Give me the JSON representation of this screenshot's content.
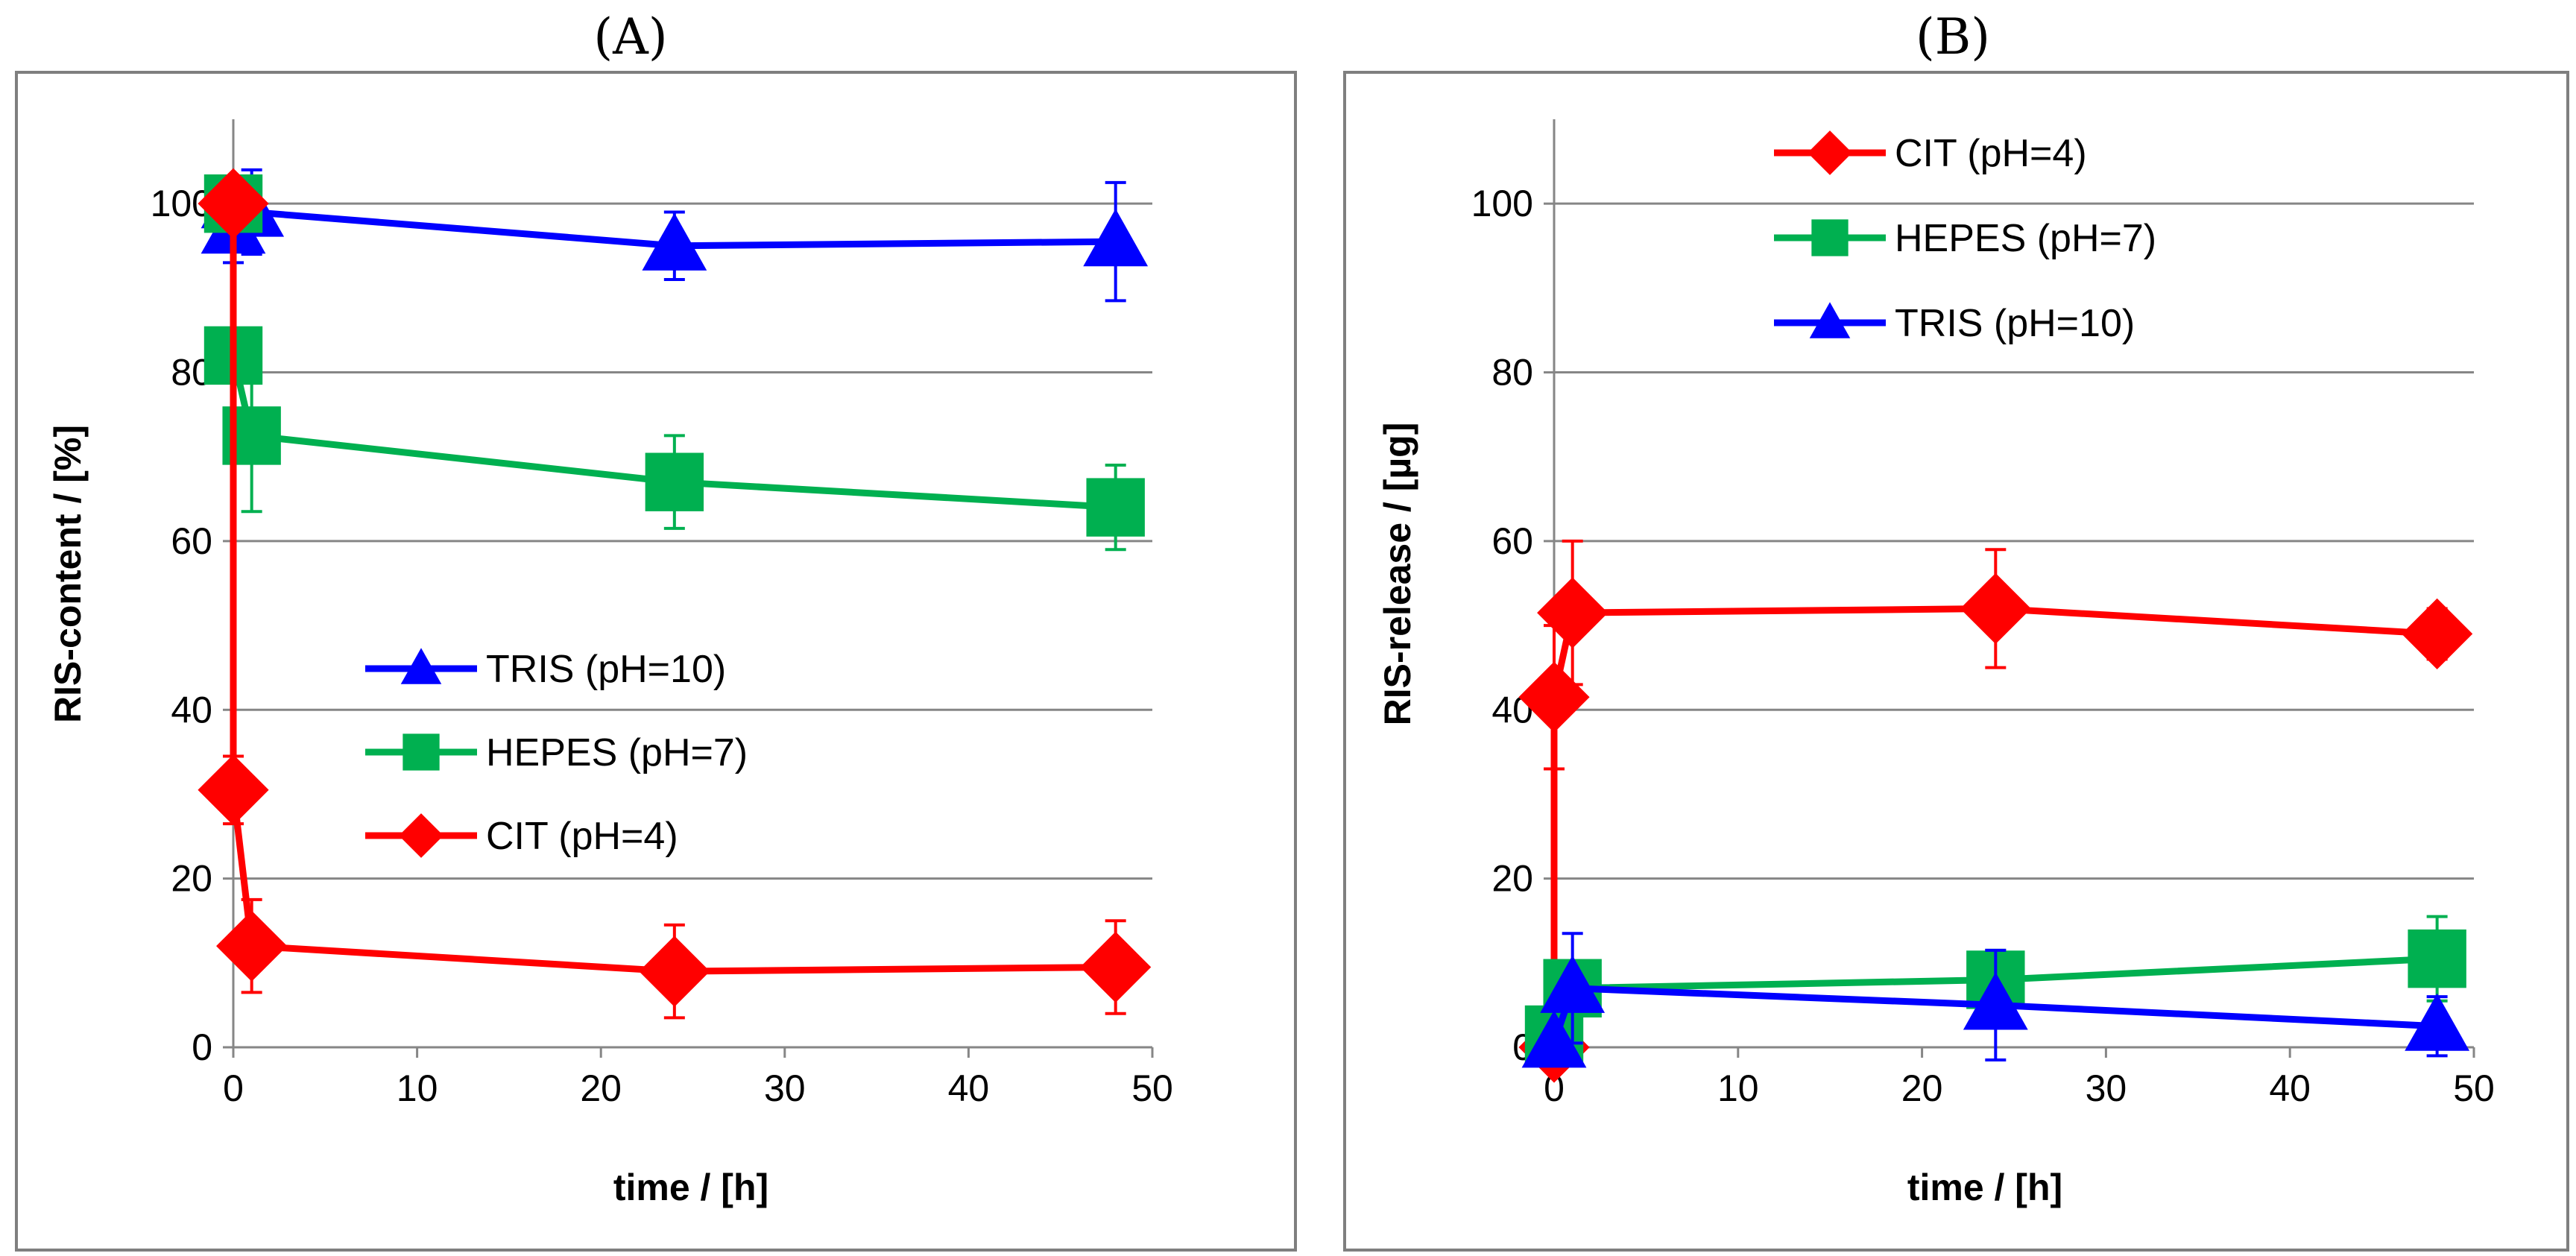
{
  "chart_data": [
    {
      "panel": "(A)",
      "type": "line",
      "xlabel": "time / [h]",
      "ylabel": "RIS-content / [%]",
      "xlim": [
        0,
        50
      ],
      "ylim": [
        0,
        110
      ],
      "xticks": [
        0,
        10,
        20,
        30,
        40,
        50
      ],
      "yticks": [
        0,
        20,
        40,
        60,
        80,
        100
      ],
      "grid": "horizontal",
      "legend": "center",
      "series": [
        {
          "name": "TRIS (pH=10)",
          "color": "#0000ff",
          "marker": "triangle",
          "x": [
            0,
            0,
            1,
            24,
            48
          ],
          "y": [
            100,
            97,
            99,
            95,
            95.5
          ],
          "err": [
            0,
            4,
            5,
            4,
            7
          ]
        },
        {
          "name": "HEPES (pH=7)",
          "color": "#00b050",
          "marker": "square",
          "x": [
            0,
            0,
            1,
            24,
            48
          ],
          "y": [
            100,
            82,
            72.5,
            67,
            64
          ],
          "err": [
            0,
            0,
            9,
            5.5,
            5
          ]
        },
        {
          "name": "CIT (pH=4)",
          "color": "#ff0000",
          "marker": "diamond",
          "x": [
            0,
            0,
            1,
            24,
            48
          ],
          "y": [
            100,
            30.5,
            12,
            9,
            9.5
          ],
          "err": [
            0,
            4,
            5.5,
            5.5,
            5.5
          ]
        }
      ]
    },
    {
      "panel": "(B)",
      "type": "line",
      "xlabel": "time / [h]",
      "ylabel": "RIS-release / [µg]",
      "xlim": [
        0,
        50
      ],
      "ylim": [
        0,
        110
      ],
      "xticks": [
        0,
        10,
        20,
        30,
        40,
        50
      ],
      "yticks": [
        0,
        20,
        40,
        60,
        80,
        100
      ],
      "grid": "horizontal",
      "legend": "top",
      "series": [
        {
          "name": "CIT (pH=4)",
          "color": "#ff0000",
          "marker": "diamond",
          "x": [
            0,
            0,
            1,
            24,
            48
          ],
          "y": [
            0,
            41.5,
            51.5,
            52,
            49
          ],
          "err": [
            0,
            8.5,
            8.5,
            7,
            3
          ]
        },
        {
          "name": "HEPES (pH=7)",
          "color": "#00b050",
          "marker": "square",
          "x": [
            0,
            1,
            24,
            48
          ],
          "y": [
            1.5,
            7,
            8,
            10.5
          ],
          "err": [
            0,
            3,
            3.5,
            5
          ]
        },
        {
          "name": "TRIS (pH=10)",
          "color": "#0000ff",
          "marker": "triangle",
          "x": [
            0,
            1,
            24,
            48
          ],
          "y": [
            0.5,
            7,
            5,
            2.5
          ],
          "err": [
            0,
            6.5,
            6.5,
            3.5
          ]
        }
      ]
    }
  ]
}
